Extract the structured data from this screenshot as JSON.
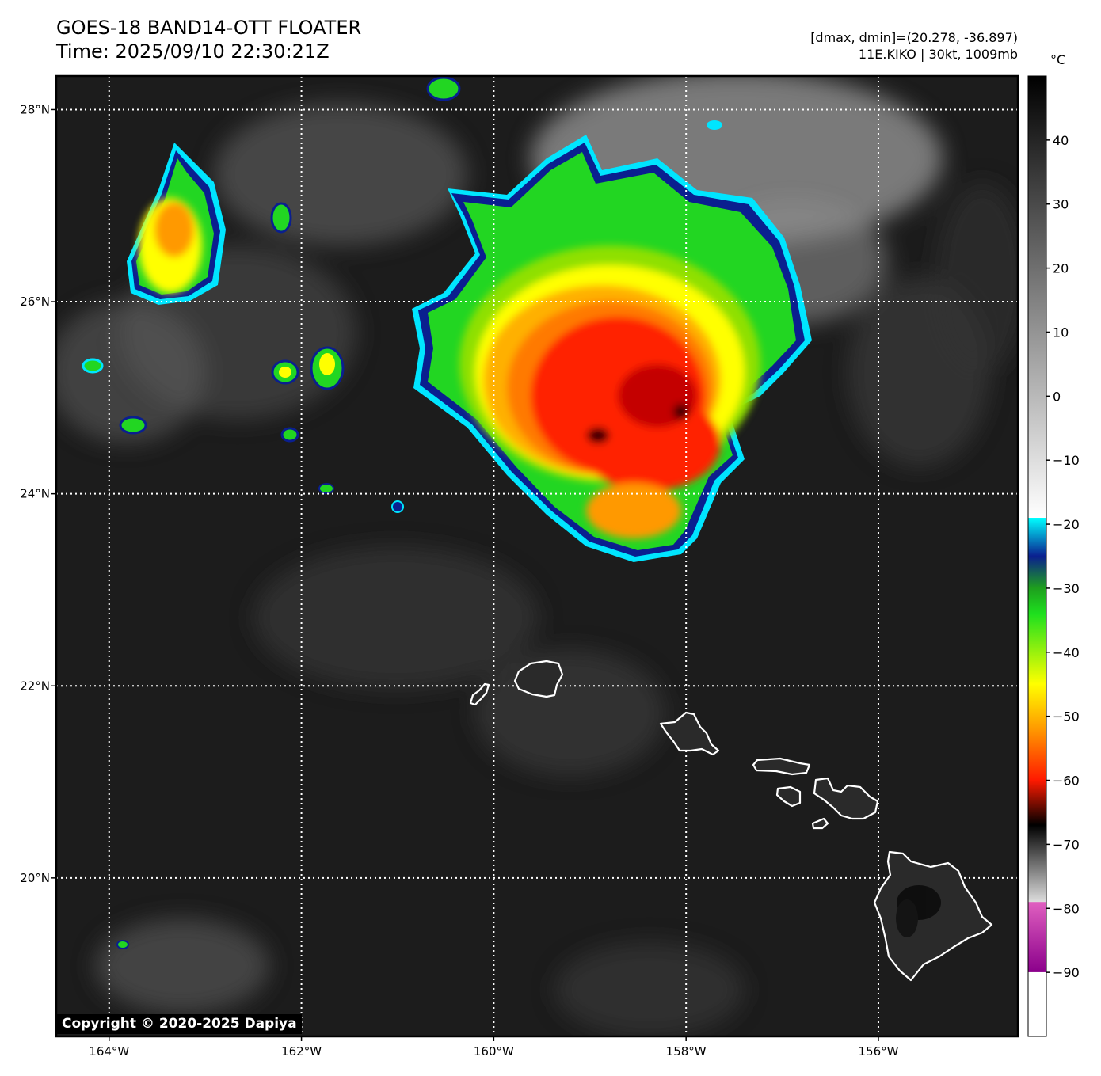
{
  "header": {
    "title_line1": "GOES-18 BAND14-OTT FLOATER",
    "title_line2": "Time: 2025/09/10 22:30:21Z",
    "info_line1": "[dmax, dmin]=(20.278, -36.897)",
    "info_line2": "11E.KIKO | 30kt, 1009mb"
  },
  "map": {
    "lon_range": [
      -164.55,
      -154.55
    ],
    "lat_range": [
      18.35,
      28.35
    ],
    "lon_ticks": [
      {
        "value": -164,
        "label": "164°W"
      },
      {
        "value": -162,
        "label": "162°W"
      },
      {
        "value": -160,
        "label": "160°W"
      },
      {
        "value": -158,
        "label": "158°W"
      },
      {
        "value": -156,
        "label": "156°W"
      }
    ],
    "lat_ticks": [
      {
        "value": 28,
        "label": "28°N"
      },
      {
        "value": 26,
        "label": "26°N"
      },
      {
        "value": 24,
        "label": "24°N"
      },
      {
        "value": 22,
        "label": "22°N"
      },
      {
        "value": 20,
        "label": "20°N"
      }
    ],
    "islands": [
      "Niihau",
      "Kauai",
      "Oahu",
      "Molokai",
      "Lanai",
      "Maui",
      "Kahoolawe",
      "Hawaii"
    ],
    "background_color": "#1c1c1c",
    "coastline_color": "#ffffff"
  },
  "colorbar": {
    "unit": "°C",
    "range": [
      -100,
      50
    ],
    "ticks": [
      {
        "value": 40,
        "label": "40"
      },
      {
        "value": 30,
        "label": "30"
      },
      {
        "value": 20,
        "label": "20"
      },
      {
        "value": 10,
        "label": "10"
      },
      {
        "value": 0,
        "label": "0"
      },
      {
        "value": -10,
        "label": "−10"
      },
      {
        "value": -20,
        "label": "−20"
      },
      {
        "value": -30,
        "label": "−30"
      },
      {
        "value": -40,
        "label": "−40"
      },
      {
        "value": -50,
        "label": "−50"
      },
      {
        "value": -60,
        "label": "−60"
      },
      {
        "value": -70,
        "label": "−70"
      },
      {
        "value": -80,
        "label": "−80"
      },
      {
        "value": -90,
        "label": "−90"
      }
    ],
    "colors": {
      "cyan": "#00e5ff",
      "blue": "#0a1f8f",
      "green": "#1ee01e",
      "yellow": "#ffff00",
      "orange": "#ff9900",
      "red": "#ff1a00",
      "magenta": "#cc33cc"
    }
  },
  "copyright": "Copyright © 2020-2025 Dapiya"
}
